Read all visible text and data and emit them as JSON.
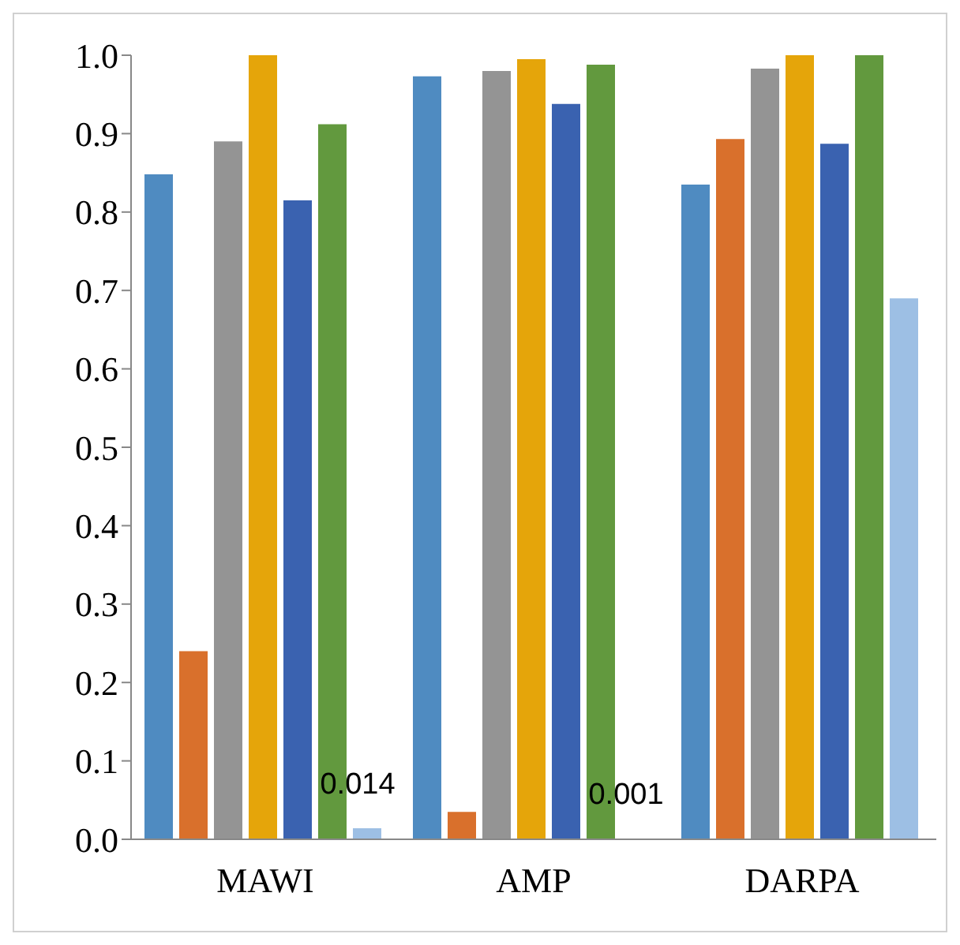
{
  "chart_data": {
    "type": "bar",
    "categories": [
      "MAWI",
      "AMP",
      "DARPA"
    ],
    "series": [
      {
        "color": "#4f8bc1",
        "values": [
          0.848,
          0.973,
          0.835
        ]
      },
      {
        "color": "#d9702c",
        "values": [
          0.24,
          0.035,
          0.893
        ]
      },
      {
        "color": "#949494",
        "values": [
          0.89,
          0.98,
          0.983
        ]
      },
      {
        "color": "#e5a50a",
        "values": [
          1.0,
          0.995,
          1.0
        ]
      },
      {
        "color": "#3a62b0",
        "values": [
          0.815,
          0.938,
          0.887
        ]
      },
      {
        "color": "#62993e",
        "values": [
          0.912,
          0.988,
          1.0
        ]
      },
      {
        "color": "#9dbfe4",
        "values": [
          0.014,
          0.001,
          0.69
        ],
        "value_labels": [
          "0.014",
          "0.001",
          null
        ]
      }
    ],
    "ylim": [
      0,
      1
    ],
    "yticks": [
      {
        "value": 0,
        "label": "0.0"
      },
      {
        "value": 0.1,
        "label": "0.1"
      },
      {
        "value": 0.2,
        "label": "0.2"
      },
      {
        "value": 0.3,
        "label": "0.3"
      },
      {
        "value": 0.4,
        "label": "0.4"
      },
      {
        "value": 0.5,
        "label": "0.5"
      },
      {
        "value": 0.6,
        "label": "0.6"
      },
      {
        "value": 0.7,
        "label": "0.7"
      },
      {
        "value": 0.8,
        "label": "0.8"
      },
      {
        "value": 0.9,
        "label": "0.9"
      },
      {
        "value": 1,
        "label": "1.0"
      }
    ],
    "grid": false,
    "legend": false
  }
}
